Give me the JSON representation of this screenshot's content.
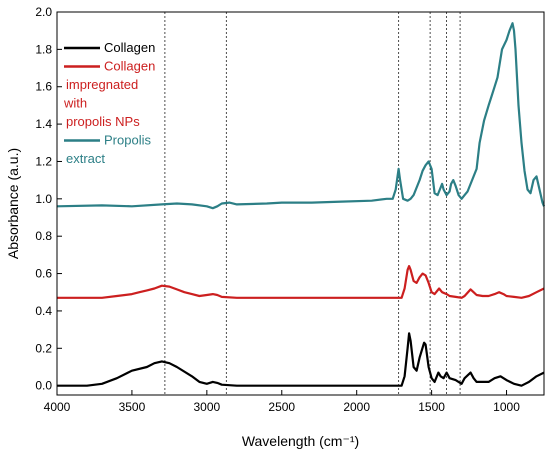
{
  "chart_data": {
    "type": "line",
    "xlabel": "Wavelength (cm⁻¹)",
    "ylabel": "Absorbance (a.u.)",
    "xlim": [
      4000,
      750
    ],
    "ylim": [
      -0.05,
      2.0
    ],
    "x_reversed": true,
    "x_ticks": [
      4000,
      3500,
      3000,
      2500,
      2000,
      1500,
      1000
    ],
    "y_ticks": [
      0.0,
      0.2,
      0.4,
      0.6,
      0.8,
      1.0,
      1.2,
      1.4,
      1.6,
      1.8,
      2.0
    ],
    "reference_lines_x": [
      3280,
      2870,
      1720,
      1510,
      1400,
      1310
    ],
    "legend": {
      "placement": "top-left",
      "entries": [
        {
          "lines": [
            "Collagen"
          ],
          "color": "#000000"
        },
        {
          "lines": [
            "Collagen",
            "impregnated",
            "with",
            "propolis NPs"
          ],
          "color": "#cc1f1f"
        },
        {
          "lines": [
            "Propolis",
            "extract"
          ],
          "color": "#2c7f86"
        }
      ]
    },
    "series": [
      {
        "color": "#000000",
        "points": [
          [
            4000,
            0.0
          ],
          [
            3800,
            0.0
          ],
          [
            3700,
            0.01
          ],
          [
            3600,
            0.04
          ],
          [
            3500,
            0.08
          ],
          [
            3400,
            0.1
          ],
          [
            3350,
            0.12
          ],
          [
            3300,
            0.13
          ],
          [
            3250,
            0.12
          ],
          [
            3200,
            0.1
          ],
          [
            3100,
            0.05
          ],
          [
            3050,
            0.02
          ],
          [
            3000,
            0.01
          ],
          [
            2960,
            0.02
          ],
          [
            2930,
            0.015
          ],
          [
            2900,
            0.005
          ],
          [
            2800,
            0.0
          ],
          [
            2500,
            0.0
          ],
          [
            2000,
            0.0
          ],
          [
            1700,
            0.0
          ],
          [
            1680,
            0.05
          ],
          [
            1660,
            0.2
          ],
          [
            1650,
            0.28
          ],
          [
            1640,
            0.24
          ],
          [
            1620,
            0.1
          ],
          [
            1600,
            0.08
          ],
          [
            1580,
            0.15
          ],
          [
            1550,
            0.23
          ],
          [
            1540,
            0.22
          ],
          [
            1520,
            0.1
          ],
          [
            1500,
            0.04
          ],
          [
            1480,
            0.02
          ],
          [
            1455,
            0.07
          ],
          [
            1440,
            0.05
          ],
          [
            1420,
            0.04
          ],
          [
            1400,
            0.07
          ],
          [
            1380,
            0.04
          ],
          [
            1340,
            0.03
          ],
          [
            1320,
            0.02
          ],
          [
            1300,
            0.01
          ],
          [
            1280,
            0.04
          ],
          [
            1240,
            0.07
          ],
          [
            1220,
            0.04
          ],
          [
            1200,
            0.02
          ],
          [
            1160,
            0.02
          ],
          [
            1120,
            0.02
          ],
          [
            1080,
            0.04
          ],
          [
            1040,
            0.05
          ],
          [
            1000,
            0.03
          ],
          [
            950,
            0.01
          ],
          [
            900,
            0.0
          ],
          [
            850,
            0.02
          ],
          [
            800,
            0.05
          ],
          [
            750,
            0.07
          ]
        ]
      },
      {
        "color": "#cc1f1f",
        "points": [
          [
            4000,
            0.47
          ],
          [
            3700,
            0.47
          ],
          [
            3600,
            0.48
          ],
          [
            3500,
            0.49
          ],
          [
            3450,
            0.5
          ],
          [
            3400,
            0.51
          ],
          [
            3350,
            0.52
          ],
          [
            3300,
            0.535
          ],
          [
            3250,
            0.53
          ],
          [
            3200,
            0.515
          ],
          [
            3150,
            0.5
          ],
          [
            3100,
            0.49
          ],
          [
            3050,
            0.48
          ],
          [
            3000,
            0.485
          ],
          [
            2960,
            0.49
          ],
          [
            2930,
            0.485
          ],
          [
            2900,
            0.475
          ],
          [
            2800,
            0.47
          ],
          [
            2500,
            0.47
          ],
          [
            2000,
            0.47
          ],
          [
            1700,
            0.47
          ],
          [
            1680,
            0.52
          ],
          [
            1660,
            0.62
          ],
          [
            1650,
            0.64
          ],
          [
            1640,
            0.62
          ],
          [
            1620,
            0.56
          ],
          [
            1600,
            0.55
          ],
          [
            1580,
            0.58
          ],
          [
            1560,
            0.6
          ],
          [
            1540,
            0.59
          ],
          [
            1520,
            0.55
          ],
          [
            1500,
            0.5
          ],
          [
            1480,
            0.49
          ],
          [
            1450,
            0.52
          ],
          [
            1430,
            0.5
          ],
          [
            1400,
            0.49
          ],
          [
            1380,
            0.48
          ],
          [
            1340,
            0.475
          ],
          [
            1300,
            0.47
          ],
          [
            1280,
            0.48
          ],
          [
            1240,
            0.515
          ],
          [
            1220,
            0.5
          ],
          [
            1200,
            0.485
          ],
          [
            1160,
            0.48
          ],
          [
            1120,
            0.48
          ],
          [
            1080,
            0.49
          ],
          [
            1050,
            0.5
          ],
          [
            1020,
            0.49
          ],
          [
            1000,
            0.48
          ],
          [
            950,
            0.475
          ],
          [
            900,
            0.47
          ],
          [
            850,
            0.48
          ],
          [
            800,
            0.5
          ],
          [
            750,
            0.52
          ]
        ]
      },
      {
        "color": "#2c7f86",
        "points": [
          [
            4000,
            0.96
          ],
          [
            3700,
            0.965
          ],
          [
            3500,
            0.96
          ],
          [
            3300,
            0.97
          ],
          [
            3200,
            0.975
          ],
          [
            3100,
            0.97
          ],
          [
            3000,
            0.96
          ],
          [
            2960,
            0.95
          ],
          [
            2930,
            0.96
          ],
          [
            2900,
            0.975
          ],
          [
            2850,
            0.98
          ],
          [
            2800,
            0.97
          ],
          [
            2600,
            0.975
          ],
          [
            2500,
            0.98
          ],
          [
            2300,
            0.98
          ],
          [
            2100,
            0.985
          ],
          [
            1900,
            0.99
          ],
          [
            1800,
            1.0
          ],
          [
            1760,
            1.0
          ],
          [
            1740,
            1.05
          ],
          [
            1720,
            1.16
          ],
          [
            1710,
            1.1
          ],
          [
            1690,
            1.0
          ],
          [
            1660,
            0.99
          ],
          [
            1640,
            1.0
          ],
          [
            1620,
            1.02
          ],
          [
            1600,
            1.06
          ],
          [
            1580,
            1.1
          ],
          [
            1560,
            1.15
          ],
          [
            1540,
            1.18
          ],
          [
            1520,
            1.2
          ],
          [
            1500,
            1.16
          ],
          [
            1480,
            1.03
          ],
          [
            1460,
            1.02
          ],
          [
            1440,
            1.06
          ],
          [
            1430,
            1.08
          ],
          [
            1420,
            1.05
          ],
          [
            1400,
            1.02
          ],
          [
            1380,
            1.04
          ],
          [
            1370,
            1.08
          ],
          [
            1355,
            1.1
          ],
          [
            1340,
            1.07
          ],
          [
            1320,
            1.02
          ],
          [
            1300,
            1.0
          ],
          [
            1280,
            1.02
          ],
          [
            1260,
            1.04
          ],
          [
            1240,
            1.08
          ],
          [
            1220,
            1.12
          ],
          [
            1200,
            1.16
          ],
          [
            1180,
            1.3
          ],
          [
            1150,
            1.42
          ],
          [
            1120,
            1.5
          ],
          [
            1100,
            1.55
          ],
          [
            1080,
            1.6
          ],
          [
            1060,
            1.65
          ],
          [
            1050,
            1.7
          ],
          [
            1040,
            1.75
          ],
          [
            1030,
            1.8
          ],
          [
            1000,
            1.85
          ],
          [
            980,
            1.9
          ],
          [
            965,
            1.93
          ],
          [
            960,
            1.94
          ],
          [
            950,
            1.9
          ],
          [
            940,
            1.8
          ],
          [
            920,
            1.5
          ],
          [
            900,
            1.3
          ],
          [
            880,
            1.15
          ],
          [
            860,
            1.05
          ],
          [
            840,
            1.03
          ],
          [
            820,
            1.1
          ],
          [
            800,
            1.12
          ],
          [
            780,
            1.05
          ],
          [
            760,
            0.98
          ],
          [
            750,
            0.96
          ]
        ]
      }
    ]
  }
}
